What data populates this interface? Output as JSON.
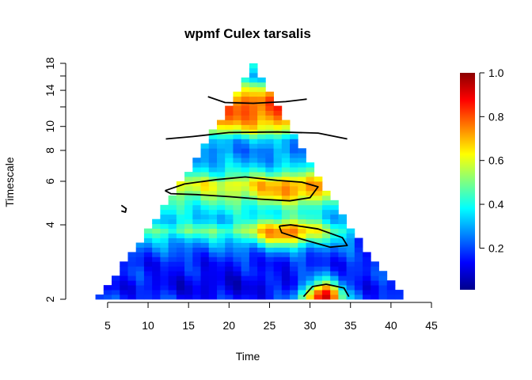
{
  "chart_data": {
    "type": "heatmap",
    "title": "wpmf Culex tarsalis",
    "xlabel": "Time",
    "ylabel": "Timescale",
    "x_ticks": [
      5,
      10,
      15,
      20,
      25,
      30,
      35,
      40,
      45
    ],
    "y_ticks": [
      2,
      4,
      6,
      8,
      10,
      14,
      18
    ],
    "y_minor_ticks": [
      12,
      16
    ],
    "y_scale": "log",
    "xlim": [
      1,
      45
    ],
    "ylim": [
      2,
      18
    ],
    "data_x_range": [
      3,
      42
    ],
    "cone_peak_x": 23,
    "colorbar": {
      "ticks": [
        0.2,
        0.4,
        0.6,
        0.8,
        1.0
      ],
      "tick_labels": [
        "0.2",
        "0.4",
        "0.6",
        "0.8",
        "1.0"
      ],
      "range": [
        0.01,
        1.0
      ],
      "colors": [
        "#00008B",
        "#0000FF",
        "#0080FF",
        "#00FFFF",
        "#80FF80",
        "#FFFF00",
        "#FF8000",
        "#FF0000",
        "#8B0000"
      ]
    },
    "grid": false,
    "legend": "right",
    "bands": [
      {
        "t": 2.0,
        "v": 0.2
      },
      {
        "t": 2.25,
        "v": 0.14
      },
      {
        "t": 2.5,
        "v": 0.18
      },
      {
        "t": 2.8,
        "v": 0.16
      },
      {
        "t": 3.1,
        "v": 0.22
      },
      {
        "t": 3.4,
        "v": 0.3
      },
      {
        "t": 3.8,
        "v": 0.48
      },
      {
        "t": 4.2,
        "v": 0.32
      },
      {
        "t": 4.7,
        "v": 0.4
      },
      {
        "t": 5.2,
        "v": 0.5
      },
      {
        "t": 5.8,
        "v": 0.62
      },
      {
        "t": 6.5,
        "v": 0.4
      },
      {
        "t": 7.2,
        "v": 0.3
      },
      {
        "t": 8.0,
        "v": 0.26
      },
      {
        "t": 8.8,
        "v": 0.32
      },
      {
        "t": 9.6,
        "v": 0.58
      },
      {
        "t": 10.6,
        "v": 0.74
      },
      {
        "t": 11.6,
        "v": 0.8
      },
      {
        "t": 12.8,
        "v": 0.78
      },
      {
        "t": 14.2,
        "v": 0.58
      },
      {
        "t": 15.8,
        "v": 0.28
      },
      {
        "t": 17.5,
        "v": 0.46
      }
    ],
    "hotspots": [
      {
        "x": 31.5,
        "t": 2.05,
        "v": 0.98,
        "rx": 2.5,
        "rt": 0.06
      },
      {
        "x": 13.0,
        "t": 10.3,
        "v": 0.96,
        "rx": 2.5,
        "rt": 0.05
      },
      {
        "x": 27.0,
        "t": 3.75,
        "v": 0.78,
        "rx": 4.0,
        "rt": 0.05
      },
      {
        "x": 28.0,
        "t": 5.6,
        "v": 0.74,
        "rx": 5.0,
        "rt": 0.05
      },
      {
        "x": 19.0,
        "t": 2.3,
        "v": 0.1,
        "rx": 8.0,
        "rt": 0.06
      },
      {
        "x": 38.5,
        "t": 3.5,
        "v": 0.14,
        "rx": 3.5,
        "rt": 0.1
      },
      {
        "x": 37.5,
        "t": 5.0,
        "v": 0.2,
        "rx": 3.0,
        "rt": 0.08
      }
    ],
    "contour_level": 0.95,
    "contours": [
      [
        [
          17.4,
          13.2
        ],
        [
          19.5,
          12.5
        ],
        [
          23,
          12.4
        ],
        [
          27,
          12.6
        ],
        [
          29.6,
          12.9
        ]
      ],
      [
        [
          12.2,
          8.9
        ],
        [
          15.5,
          9.1
        ],
        [
          20,
          9.45
        ],
        [
          26,
          9.5
        ],
        [
          31,
          9.4
        ],
        [
          34.6,
          8.9
        ]
      ],
      [
        [
          12.1,
          5.5
        ],
        [
          14.5,
          5.85
        ],
        [
          18.5,
          6.1
        ],
        [
          22,
          6.25
        ],
        [
          26,
          6.05
        ],
        [
          29,
          5.95
        ],
        [
          31,
          5.7
        ],
        [
          30,
          5.15
        ],
        [
          27.5,
          5.0
        ],
        [
          24,
          5.08
        ],
        [
          20,
          5.2
        ],
        [
          16,
          5.3
        ],
        [
          12.8,
          5.35
        ],
        [
          12.1,
          5.5
        ]
      ],
      [
        [
          6.7,
          4.8
        ],
        [
          7.3,
          4.65
        ],
        [
          7.2,
          4.5
        ],
        [
          6.7,
          4.55
        ]
      ],
      [
        [
          26.2,
          3.95
        ],
        [
          27.6,
          4.0
        ],
        [
          31,
          3.85
        ],
        [
          34,
          3.55
        ],
        [
          34.6,
          3.3
        ],
        [
          32.5,
          3.25
        ],
        [
          29,
          3.5
        ],
        [
          26.5,
          3.72
        ],
        [
          26.2,
          3.95
        ]
      ],
      [
        [
          29.2,
          2.05
        ],
        [
          30.3,
          2.25
        ],
        [
          32,
          2.3
        ],
        [
          34.2,
          2.22
        ],
        [
          34.8,
          2.05
        ]
      ]
    ]
  }
}
